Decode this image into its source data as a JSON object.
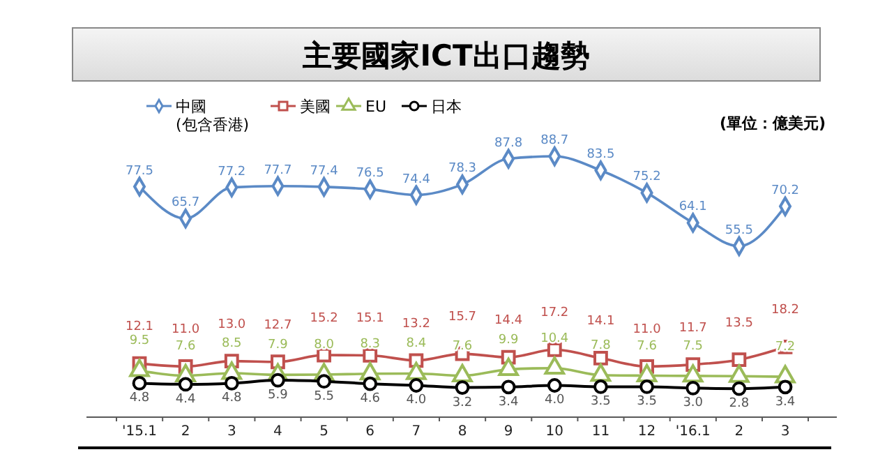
{
  "chart_data": {
    "type": "line",
    "title": "主要國家ICT出口趨勢",
    "annotations": [
      "(單位：億美元)"
    ],
    "categories": [
      "'15.1",
      "2",
      "3",
      "4",
      "5",
      "6",
      "7",
      "8",
      "9",
      "10",
      "11",
      "12",
      "'16.1",
      "2",
      "3"
    ],
    "legend": "top left",
    "data_labels": true,
    "series": [
      {
        "name": "中國\n(包含香港)",
        "color": "#5b8ac6",
        "marker": "diamond",
        "values": [
          77.5,
          65.7,
          77.2,
          77.7,
          77.4,
          76.5,
          74.4,
          78.3,
          87.8,
          88.7,
          83.5,
          75.2,
          64.1,
          55.5,
          70.2
        ]
      },
      {
        "name": "美國",
        "color": "#c0504d",
        "marker": "square",
        "values": [
          12.1,
          11.0,
          13.0,
          12.7,
          15.2,
          15.1,
          13.2,
          15.7,
          14.4,
          17.2,
          14.1,
          11.0,
          11.7,
          13.5,
          18.2
        ],
        "value_labels": [
          "12.1",
          "11.0",
          "13.0",
          "12.7",
          "15.2",
          "15.1",
          "13.2",
          "15.7",
          "14.4",
          "17.2",
          "14.1",
          "11.0",
          "11.7",
          "13.5",
          "18.2"
        ]
      },
      {
        "name": "EU",
        "color": "#9bbb59",
        "marker": "triangle",
        "values": [
          9.5,
          7.6,
          8.5,
          7.9,
          8.0,
          8.3,
          8.4,
          7.6,
          9.9,
          10.4,
          7.8,
          7.6,
          7.5,
          7.4,
          7.2
        ],
        "value_labels": [
          "9.5",
          "7.6",
          "8.5",
          "7.9",
          "8.0",
          "8.3",
          "8.4",
          "7.6",
          "9.9",
          "10.4",
          "7.8",
          "7.6",
          "7.5",
          null,
          "7.2"
        ]
      },
      {
        "name": "日本",
        "color": "#000000",
        "marker": "circle",
        "values": [
          4.8,
          4.4,
          4.8,
          5.9,
          5.5,
          4.6,
          4.0,
          3.2,
          3.4,
          4.0,
          3.5,
          3.5,
          3.0,
          2.8,
          3.4
        ],
        "value_labels": [
          "4.8",
          "4.4",
          "4.8",
          "5.9",
          "5.5",
          "4.6",
          "4.0",
          "3.2",
          "3.4",
          "4.0",
          "3.5",
          "3.5",
          "3.0",
          "2.8",
          "3.4"
        ]
      }
    ]
  }
}
